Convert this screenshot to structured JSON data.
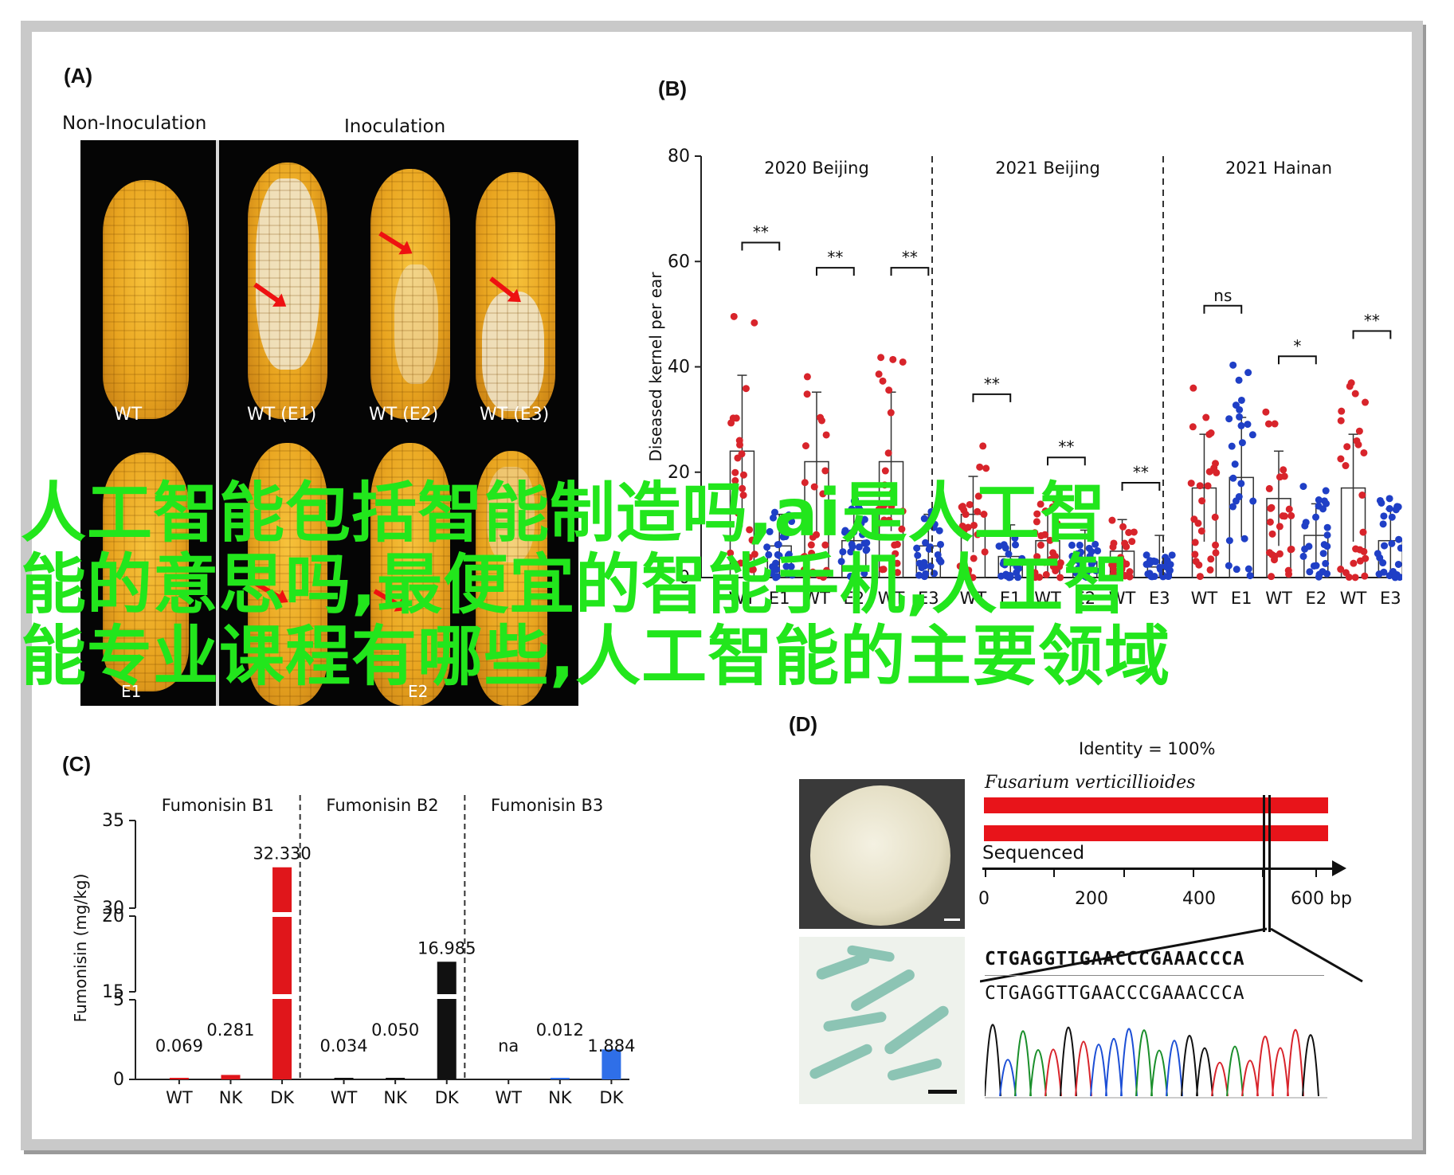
{
  "panels": {
    "a": {
      "label": "(A)",
      "header_non": "Non-Inoculation",
      "header_inoc": "Inoculation",
      "ear_labels_top": [
        "WT",
        "WT (E1)",
        "WT (E2)",
        "WT (E3)"
      ],
      "ear_labels_bottom": [
        "E1",
        "E2"
      ]
    },
    "b": {
      "label": "(B)"
    },
    "c": {
      "label": "(C)"
    },
    "d": {
      "label": "(D)",
      "identity": "Identity = 100%",
      "species": "Fusarium verticillioides",
      "sequenced": "Sequenced",
      "axis_ticks": [
        "0",
        "200",
        "400",
        "600 bp"
      ],
      "seq_line1": "CTGAGGTTGAACCCGAAACCCA",
      "seq_line2": "CTGAGGTTGAACCCGAAACCCA"
    }
  },
  "overlay": {
    "lines": [
      "人工智能包括智能制造吗,ai是人工智",
      "能的意思吗,最便宜的智能手机,人工智",
      "能专业课程有哪些,人工智能的主要领域"
    ]
  },
  "chart_data": [
    {
      "type": "scatter",
      "panel": "B",
      "ylabel": "Diseased kernel per ear",
      "ylim": [
        0,
        80
      ],
      "yticks": [
        0,
        20,
        40,
        60,
        80
      ],
      "groups": [
        {
          "title": "2020 Beijing",
          "categories": [
            "WT",
            "E1",
            "WT",
            "E2",
            "WT",
            "E3"
          ],
          "means": [
            24,
            6,
            22,
            7,
            22,
            6
          ],
          "sig": [
            {
              "pair": [
                0,
                1
              ],
              "text": "**"
            },
            {
              "pair": [
                2,
                3
              ],
              "text": "**"
            },
            {
              "pair": [
                4,
                5
              ],
              "text": "**"
            }
          ]
        },
        {
          "title": "2021 Beijing",
          "categories": [
            "WT",
            "E1",
            "WT",
            "E2",
            "WT",
            "E3"
          ],
          "means": [
            12,
            4,
            7,
            3,
            5,
            2
          ],
          "sig": [
            {
              "pair": [
                0,
                1
              ],
              "text": "**"
            },
            {
              "pair": [
                2,
                3
              ],
              "text": "**"
            },
            {
              "pair": [
                4,
                5
              ],
              "text": "**"
            }
          ]
        },
        {
          "title": "2021 Hainan",
          "categories": [
            "WT",
            "E1",
            "WT",
            "E2",
            "WT",
            "E3"
          ],
          "means": [
            17,
            19,
            15,
            8,
            17,
            7
          ],
          "sig": [
            {
              "pair": [
                0,
                1
              ],
              "text": "ns"
            },
            {
              "pair": [
                2,
                3
              ],
              "text": "*"
            },
            {
              "pair": [
                4,
                5
              ],
              "text": "**"
            }
          ]
        }
      ]
    },
    {
      "type": "bar",
      "panel": "C",
      "ylabel": "Fumonisin (mg/kg)",
      "yticks": [
        "0",
        "5",
        "15",
        "20",
        "30",
        "35"
      ],
      "groups": [
        {
          "title": "Fumonisin B1",
          "categories": [
            "WT",
            "NK",
            "DK"
          ],
          "values": [
            0.069,
            0.281,
            32.33
          ],
          "labels": [
            "0.069",
            "0.281",
            "32.330"
          ],
          "colors": [
            "#e0161b",
            "#e0161b",
            "#e0161b"
          ]
        },
        {
          "title": "Fumonisin B2",
          "categories": [
            "WT",
            "NK",
            "DK"
          ],
          "values": [
            0.034,
            0.05,
            16.985
          ],
          "labels": [
            "0.034",
            "0.050",
            "16.985"
          ],
          "colors": [
            "#111111",
            "#111111",
            "#111111"
          ]
        },
        {
          "title": "Fumonisin B3",
          "categories": [
            "WT",
            "NK",
            "DK"
          ],
          "values": [
            null,
            0.012,
            1.884
          ],
          "labels": [
            "na",
            "0.012",
            "1.884"
          ],
          "colors": [
            "#2f6fe8",
            "#2f6fe8",
            "#2f6fe8"
          ]
        }
      ]
    }
  ]
}
